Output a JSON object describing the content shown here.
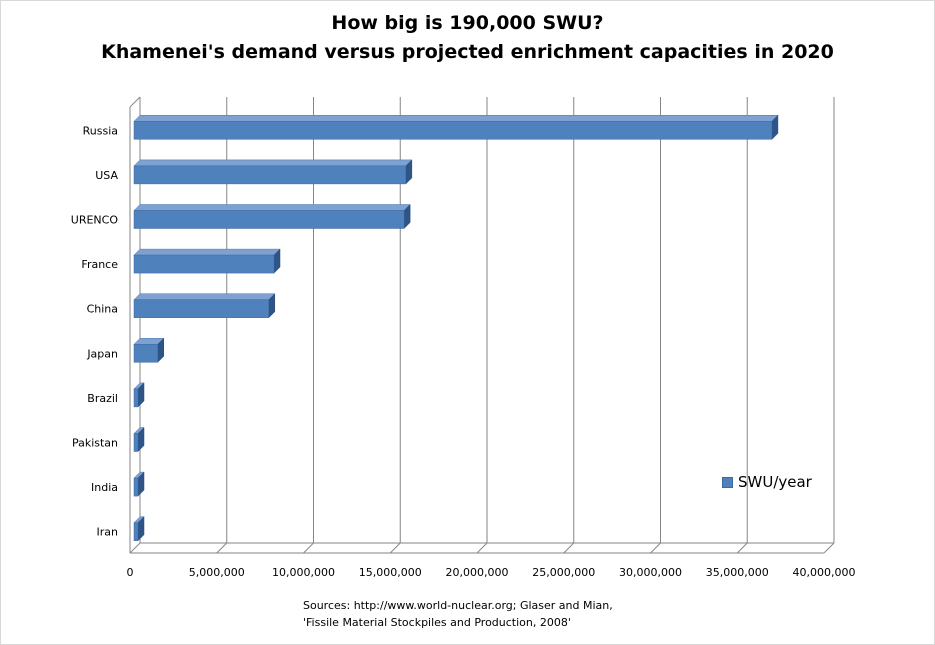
{
  "chart_data": {
    "type": "bar",
    "orientation": "horizontal",
    "title": "How big is 190,000 SWU?",
    "subtitle": "Khamenei's demand versus projected enrichment capacities in 2020",
    "categories": [
      "Russia",
      "USA",
      "URENCO",
      "France",
      "China",
      "Japan",
      "Brazil",
      "Pakistan",
      "India",
      "Iran"
    ],
    "series": [
      {
        "name": "SWU/year",
        "color": "#4f81bd",
        "values": [
          37000000,
          15900000,
          15800000,
          8300000,
          8000000,
          1600000,
          120000,
          60000,
          20000,
          9000
        ]
      }
    ],
    "xlim": [
      0,
      40000000
    ],
    "xticks": [
      "0",
      "5,000,000",
      "10,000,000",
      "15,000,000",
      "20,000,000",
      "25,000,000",
      "30,000,000",
      "35,000,000",
      "40,000,000"
    ],
    "grid": true,
    "legend": "right"
  },
  "source": {
    "line1": "Sources: http://www.world-nuclear.org;  Glaser and Mian,",
    "line2": "'Fissile Material Stockpiles and Production, 2008'"
  }
}
